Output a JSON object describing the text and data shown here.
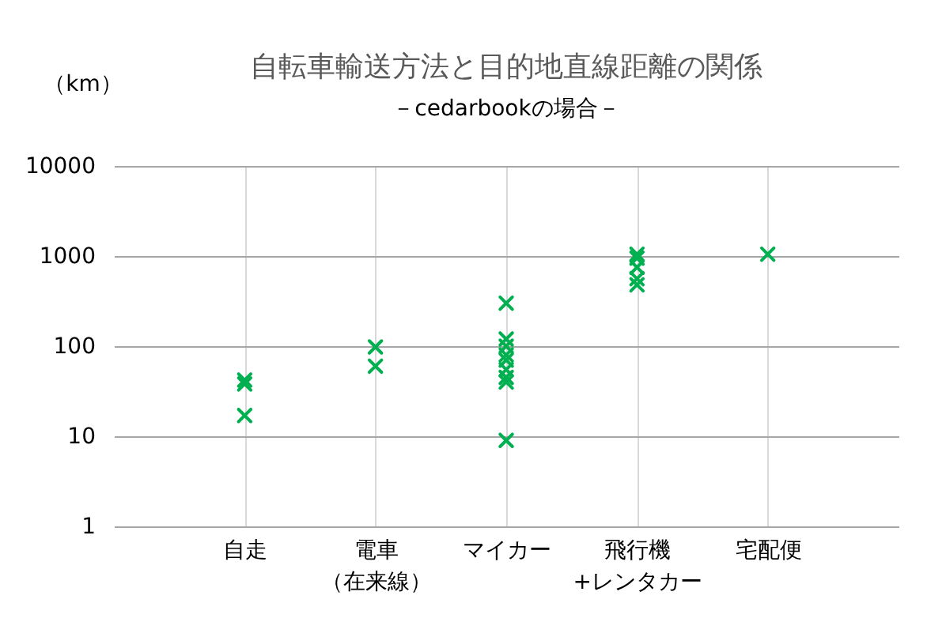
{
  "chart_data": {
    "type": "scatter",
    "title": "自転車輸送方法と目的地直線距離の関係",
    "subtitle": "－cedarbookの場合－",
    "ylabel": "（km）",
    "categories": [
      "自走",
      "電車（在来線）",
      "マイカー",
      "飛行機+レンタカー",
      "宅配便"
    ],
    "series": [
      {
        "color": "#00b050",
        "x": [
          "自走",
          "自走",
          "自走",
          "電車（在来線）",
          "電車（在来線）",
          "マイカー",
          "マイカー",
          "マイカー",
          "マイカー",
          "マイカー",
          "マイカー",
          "マイカー",
          "マイカー",
          "マイカー",
          "飛行機+レンタカー",
          "飛行機+レンタカー",
          "飛行機+レンタカー",
          "飛行機+レンタカー",
          "飛行機+レンタカー",
          "宅配便"
        ],
        "values": [
          42,
          38,
          17,
          98,
          60,
          300,
          120,
          100,
          80,
          70,
          55,
          45,
          40,
          9,
          1050,
          950,
          750,
          560,
          480,
          1050
        ]
      }
    ],
    "ylim": [
      1,
      10000
    ],
    "yticks": [
      1,
      10,
      100,
      1000,
      10000
    ],
    "log": true,
    "grid": true,
    "marker": "cross",
    "legend": false
  }
}
